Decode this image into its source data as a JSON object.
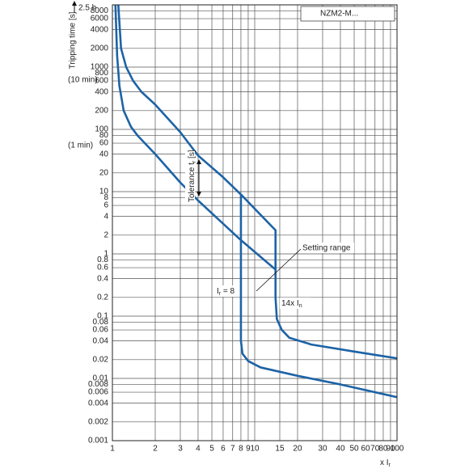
{
  "chart_data": {
    "type": "line",
    "title": "NZM2-M...",
    "y_label": "Tripping time [s]",
    "x_label": {
      "main": "x I",
      "sub": "r"
    },
    "y_notes": {
      "top": "2.5 h",
      "ten_min": "(10 min)",
      "one_min": "(1 min)"
    },
    "annotations": {
      "tolerance": {
        "main": "Tolerance t",
        "sub": "r",
        "rest": " [s]"
      },
      "setting_range": "Setting range",
      "ir8": {
        "main": "I",
        "sub": "r",
        "rest": " = 8"
      },
      "in14": {
        "main": "14x I",
        "sub": "n"
      }
    },
    "log_x": true,
    "log_y": true,
    "grid": true,
    "color": "#1d63a6",
    "xlim": [
      1,
      100
    ],
    "ylim": [
      0.001,
      10000
    ],
    "xticks": [
      1,
      2,
      3,
      4,
      5,
      6,
      7,
      8,
      9,
      10,
      15,
      20,
      30,
      40,
      50,
      60,
      70,
      80,
      90,
      100
    ],
    "yticks": [
      0.001,
      0.002,
      0.004,
      0.006,
      0.008,
      0.01,
      0.02,
      0.04,
      0.06,
      0.08,
      0.1,
      0.2,
      0.4,
      0.6,
      0.8,
      1,
      2,
      4,
      6,
      8,
      10,
      20,
      40,
      60,
      80,
      100,
      200,
      400,
      600,
      800,
      1000,
      2000,
      4000,
      6000,
      8000
    ],
    "series": [
      {
        "x": [
          1.1,
          1.15,
          1.25,
          1.4,
          1.6,
          2,
          3,
          4,
          6,
          8,
          8,
          8.2,
          9,
          11,
          20,
          40,
          100
        ],
        "values": [
          10000,
          2000,
          1000,
          600,
          400,
          250,
          90,
          38,
          17,
          9,
          0.04,
          0.025,
          0.019,
          0.015,
          0.011,
          0.008,
          0.005
        ]
      },
      {
        "x": [
          1.05,
          1.08,
          1.12,
          1.2,
          1.35,
          1.5,
          2,
          3,
          4,
          8,
          14
        ],
        "values": [
          10000,
          1500,
          500,
          200,
          110,
          80,
          40,
          14,
          7.2,
          1.66,
          0.56
        ]
      },
      {
        "x": [
          8,
          14,
          14,
          14.3,
          15.5,
          17.5,
          25,
          50,
          100
        ],
        "values": [
          9,
          2.4,
          0.2,
          0.09,
          0.06,
          0.045,
          0.035,
          0.027,
          0.021
        ]
      }
    ]
  }
}
